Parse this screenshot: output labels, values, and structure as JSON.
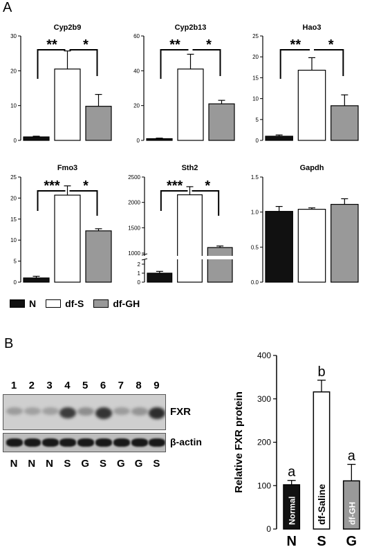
{
  "panel_labels": {
    "a": "A",
    "b": "B"
  },
  "colors": {
    "N": "#111111",
    "df-S": "#ffffff",
    "df-GH": "#999999"
  },
  "legend": [
    {
      "key": "N",
      "label": "N"
    },
    {
      "key": "df-S",
      "label": "df-S"
    },
    {
      "key": "df-GH",
      "label": "df-GH"
    }
  ],
  "chart_data": [
    {
      "type": "bar",
      "title": "Cyp2b9",
      "categories": [
        "N",
        "df-S",
        "df-GH"
      ],
      "values": [
        1.0,
        20.5,
        9.8
      ],
      "errors": [
        0.2,
        5.2,
        3.4
      ],
      "ylim": [
        0,
        30
      ],
      "yticks": [
        "0",
        "10",
        "20",
        "30"
      ],
      "significance": [
        "**",
        "*"
      ]
    },
    {
      "type": "bar",
      "title": "Cyp2b13",
      "categories": [
        "N",
        "df-S",
        "df-GH"
      ],
      "values": [
        1.0,
        41.0,
        21.0
      ],
      "errors": [
        0.3,
        8.5,
        2.0
      ],
      "ylim": [
        0,
        60
      ],
      "yticks": [
        "0",
        "20",
        "40",
        "60"
      ],
      "significance": [
        "**",
        "*"
      ]
    },
    {
      "type": "bar",
      "title": "Hao3",
      "categories": [
        "N",
        "df-S",
        "df-GH"
      ],
      "values": [
        1.0,
        16.8,
        8.3
      ],
      "errors": [
        0.3,
        3.0,
        2.6
      ],
      "ylim": [
        0,
        25
      ],
      "yticks": [
        "0",
        "5",
        "10",
        "15",
        "20",
        "25"
      ],
      "significance": [
        "**",
        "*"
      ]
    },
    {
      "type": "bar",
      "title": "Fmo3",
      "categories": [
        "N",
        "df-S",
        "df-GH"
      ],
      "values": [
        1.0,
        20.7,
        12.2
      ],
      "errors": [
        0.4,
        2.2,
        0.5
      ],
      "ylim": [
        0,
        25
      ],
      "yticks": [
        "0",
        "5",
        "10",
        "15",
        "20",
        "25"
      ],
      "significance": [
        "***",
        "*"
      ]
    },
    {
      "type": "bar",
      "title": "Sth2",
      "categories": [
        "N",
        "df-S",
        "df-GH"
      ],
      "values": [
        1.0,
        2150,
        1110
      ],
      "errors": [
        0.2,
        160,
        30
      ],
      "ylim": [
        0,
        2500
      ],
      "yticks": [
        "0",
        "1",
        "2",
        "1000",
        "1500",
        "2000",
        "2500"
      ],
      "significance": [
        "***",
        "*"
      ]
    },
    {
      "type": "bar",
      "title": "Gapdh",
      "categories": [
        "N",
        "df-S",
        "df-GH"
      ],
      "values": [
        1.01,
        1.04,
        1.11
      ],
      "errors": [
        0.07,
        0.02,
        0.08
      ],
      "ylim": [
        0,
        1.5
      ],
      "yticks": [
        "0.0",
        "0.5",
        "1.0",
        "1.5"
      ],
      "significance": []
    },
    {
      "type": "bar",
      "title": "",
      "ylabel": "Relative FXR protein",
      "categories": [
        "N",
        "S",
        "G"
      ],
      "bar_labels": [
        "Normal",
        "df-Saline",
        "df-GH"
      ],
      "letters": [
        "a",
        "b",
        "a"
      ],
      "values": [
        102,
        316,
        111
      ],
      "errors": [
        10,
        27,
        38
      ],
      "ylim": [
        0,
        400
      ],
      "yticks": [
        "0",
        "100",
        "200",
        "300",
        "400"
      ]
    }
  ],
  "blot": {
    "lane_numbers": [
      "1",
      "2",
      "3",
      "4",
      "5",
      "6",
      "7",
      "8",
      "9"
    ],
    "lane_groups": [
      "N",
      "N",
      "N",
      "S",
      "G",
      "S",
      "G",
      "G",
      "S"
    ],
    "band_labels": {
      "fxr": "FXR",
      "actin": "β-actin"
    },
    "fxr_intensity": [
      0.15,
      0.12,
      0.12,
      0.8,
      0.25,
      0.85,
      0.15,
      0.2,
      0.9
    ]
  }
}
